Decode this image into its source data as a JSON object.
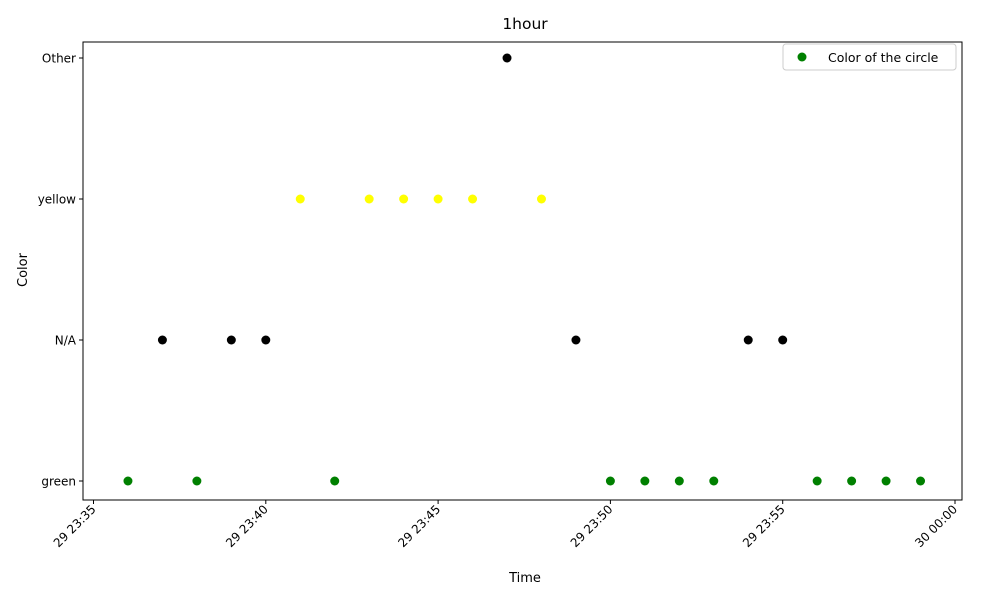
{
  "chart_data": {
    "type": "scatter",
    "title": "1hour",
    "xlabel": "Time",
    "ylabel": "Color",
    "y_categories": [
      "green",
      "N/A",
      "yellow",
      "Other"
    ],
    "x_tick_labels": [
      "29 23:35",
      "29 23:40",
      "29 23:45",
      "29 23:50",
      "29 23:55",
      "30 00:00"
    ],
    "x_tick_times": [
      "23:35",
      "23:40",
      "23:45",
      "23:50",
      "23:55",
      "24:00"
    ],
    "xlim": [
      "23:35",
      "24:00"
    ],
    "grid": false,
    "legend": {
      "entries": [
        {
          "label": "Color of the circle",
          "color": "#008000"
        }
      ],
      "placement": "upper-right"
    },
    "point_colors": {
      "green": "#008000",
      "N/A": "#000000",
      "yellow": "#ffff00",
      "Other": "#000000"
    },
    "points": [
      {
        "x": "23:36",
        "y": "green"
      },
      {
        "x": "23:37",
        "y": "N/A"
      },
      {
        "x": "23:38",
        "y": "green"
      },
      {
        "x": "23:39",
        "y": "N/A"
      },
      {
        "x": "23:40",
        "y": "N/A"
      },
      {
        "x": "23:41",
        "y": "yellow"
      },
      {
        "x": "23:42",
        "y": "green"
      },
      {
        "x": "23:43",
        "y": "yellow"
      },
      {
        "x": "23:44",
        "y": "yellow"
      },
      {
        "x": "23:45",
        "y": "yellow"
      },
      {
        "x": "23:46",
        "y": "yellow"
      },
      {
        "x": "23:47",
        "y": "Other"
      },
      {
        "x": "23:48",
        "y": "yellow"
      },
      {
        "x": "23:49",
        "y": "N/A"
      },
      {
        "x": "23:50",
        "y": "green"
      },
      {
        "x": "23:51",
        "y": "green"
      },
      {
        "x": "23:52",
        "y": "green"
      },
      {
        "x": "23:53",
        "y": "green"
      },
      {
        "x": "23:54",
        "y": "N/A"
      },
      {
        "x": "23:55",
        "y": "N/A"
      },
      {
        "x": "23:56",
        "y": "green"
      },
      {
        "x": "23:57",
        "y": "green"
      },
      {
        "x": "23:58",
        "y": "green"
      },
      {
        "x": "23:59",
        "y": "green"
      }
    ]
  }
}
